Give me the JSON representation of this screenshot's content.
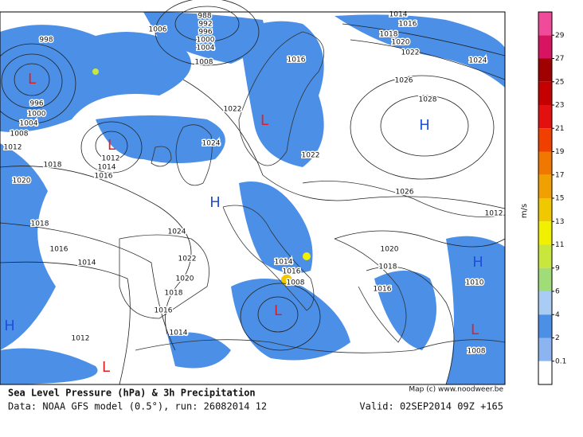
{
  "map": {
    "credit": "Map (c) www.noodweer.be",
    "pressure_centers": [
      {
        "label": "L",
        "kind": "low"
      },
      {
        "label": "L",
        "kind": "low"
      },
      {
        "label": "L",
        "kind": "low"
      },
      {
        "label": "L",
        "kind": "low"
      },
      {
        "label": "L",
        "kind": "low"
      },
      {
        "label": "L",
        "kind": "low"
      },
      {
        "label": "H",
        "kind": "high"
      },
      {
        "label": "H",
        "kind": "high"
      },
      {
        "label": "H",
        "kind": "high"
      },
      {
        "label": "H",
        "kind": "high"
      }
    ],
    "isobar_labels": [
      "998",
      "1006",
      "988",
      "992",
      "996",
      "1000",
      "1004",
      "1008",
      "1014",
      "1016",
      "1018",
      "1020",
      "1022",
      "1024",
      "1026",
      "1028",
      "996",
      "1000",
      "1004",
      "1008",
      "1012",
      "1016",
      "1022",
      "1024",
      "1022",
      "1012",
      "1014",
      "1016",
      "1018",
      "1020",
      "1026",
      "1012",
      "1018",
      "1016",
      "1014",
      "1024",
      "1022",
      "1020",
      "1018",
      "1016",
      "1014",
      "1012",
      "1020",
      "1018",
      "1014",
      "1016",
      "1008",
      "1016",
      "1010",
      "1008"
    ]
  },
  "colorbar": {
    "unit": "m/s",
    "ticks": [
      29,
      27,
      25,
      23,
      21,
      19,
      17,
      15,
      13,
      11,
      9,
      6,
      4,
      2,
      0.1
    ],
    "colors": [
      "#f04a9a",
      "#d81460",
      "#a00000",
      "#c40000",
      "#e41010",
      "#f04000",
      "#f07800",
      "#f0a000",
      "#f0c800",
      "#f0f000",
      "#c8e63c",
      "#a0dc78",
      "#a8ccf4",
      "#4b8fe6",
      "#8cb4f0",
      "#ffffff"
    ]
  },
  "footer": {
    "title": "Sea Level Pressure (hPa) & 3h Precipitation",
    "source": "Data: NOAA GFS model (0.5°), run: 26082014 12",
    "valid": "Valid: 02SEP2014 09Z +165"
  }
}
